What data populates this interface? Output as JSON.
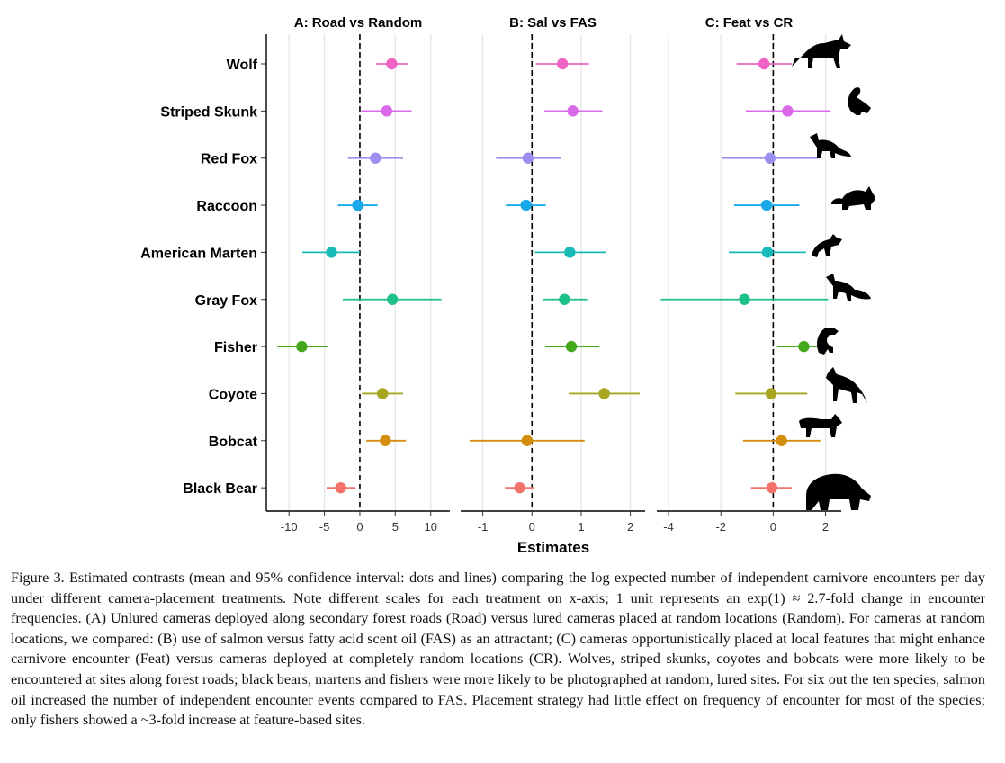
{
  "chart_data": {
    "type": "forest",
    "xlabel": "Estimates",
    "species": [
      "Wolf",
      "Striped Skunk",
      "Red Fox",
      "Raccoon",
      "American Marten",
      "Gray Fox",
      "Fisher",
      "Coyote",
      "Bobcat",
      "Black Bear"
    ],
    "colors": {
      "Wolf": "#EE63C4",
      "Striped Skunk": "#D969E8",
      "Red Fox": "#9B8FEF",
      "Raccoon": "#1AA9E8",
      "American Marten": "#17BAB6",
      "Gray Fox": "#1CC088",
      "Fisher": "#45A81C",
      "Coyote": "#A6A621",
      "Bobcat": "#D38E0E",
      "Black Bear": "#F2736C"
    },
    "icons": [
      "wolf-icon",
      "skunk-icon",
      "red-fox-icon",
      "raccoon-icon",
      "marten-icon",
      "gray-fox-icon",
      "fisher-icon",
      "coyote-icon",
      "bobcat-icon",
      "bear-icon"
    ],
    "panels": [
      {
        "title": "A: Road vs Random",
        "xlim": [
          -13.2,
          12.7
        ],
        "ticks": [
          -10,
          -5,
          0,
          5,
          10
        ],
        "estimates": [
          {
            "species": "Wolf",
            "mean": 4.5,
            "lower": 2.3,
            "upper": 6.7
          },
          {
            "species": "Striped Skunk",
            "mean": 3.8,
            "lower": 0.2,
            "upper": 7.3
          },
          {
            "species": "Red Fox",
            "mean": 2.2,
            "lower": -1.7,
            "upper": 6.1
          },
          {
            "species": "Raccoon",
            "mean": -0.3,
            "lower": -3.1,
            "upper": 2.5
          },
          {
            "species": "American Marten",
            "mean": -4.0,
            "lower": -8.1,
            "upper": 0.0
          },
          {
            "species": "Gray Fox",
            "mean": 4.6,
            "lower": -2.4,
            "upper": 11.5
          },
          {
            "species": "Fisher",
            "mean": -8.2,
            "lower": -11.6,
            "upper": -4.6
          },
          {
            "species": "Coyote",
            "mean": 3.2,
            "lower": 0.3,
            "upper": 6.1
          },
          {
            "species": "Bobcat",
            "mean": 3.6,
            "lower": 0.9,
            "upper": 6.5
          },
          {
            "species": "Black Bear",
            "mean": -2.7,
            "lower": -4.7,
            "upper": -0.6
          }
        ]
      },
      {
        "title": "B: Sal vs FAS",
        "xlim": [
          -1.45,
          2.3
        ],
        "ticks": [
          -1,
          0,
          1,
          2
        ],
        "estimates": [
          {
            "species": "Wolf",
            "mean": 0.62,
            "lower": 0.08,
            "upper": 1.16
          },
          {
            "species": "Striped Skunk",
            "mean": 0.83,
            "lower": 0.25,
            "upper": 1.43
          },
          {
            "species": "Red Fox",
            "mean": -0.08,
            "lower": -0.73,
            "upper": 0.6
          },
          {
            "species": "Raccoon",
            "mean": -0.12,
            "lower": -0.53,
            "upper": 0.28
          },
          {
            "species": "American Marten",
            "mean": 0.77,
            "lower": 0.06,
            "upper": 1.5
          },
          {
            "species": "Gray Fox",
            "mean": 0.66,
            "lower": 0.22,
            "upper": 1.12
          },
          {
            "species": "Fisher",
            "mean": 0.8,
            "lower": 0.27,
            "upper": 1.37
          },
          {
            "species": "Coyote",
            "mean": 1.47,
            "lower": 0.75,
            "upper": 2.19
          },
          {
            "species": "Bobcat",
            "mean": -0.1,
            "lower": -1.27,
            "upper": 1.07
          },
          {
            "species": "Black Bear",
            "mean": -0.25,
            "lower": -0.55,
            "upper": 0.03
          }
        ]
      },
      {
        "title": "C: Feat vs CR",
        "xlim": [
          -4.45,
          2.6
        ],
        "ticks": [
          -4,
          -2,
          0,
          2
        ],
        "estimates": [
          {
            "species": "Wolf",
            "mean": -0.35,
            "lower": -1.4,
            "upper": 0.7
          },
          {
            "species": "Striped Skunk",
            "mean": 0.55,
            "lower": -1.05,
            "upper": 2.2
          },
          {
            "species": "Red Fox",
            "mean": -0.12,
            "lower": -1.95,
            "upper": 1.7
          },
          {
            "species": "Raccoon",
            "mean": -0.25,
            "lower": -1.5,
            "upper": 1.0
          },
          {
            "species": "American Marten",
            "mean": -0.22,
            "lower": -1.7,
            "upper": 1.25
          },
          {
            "species": "Gray Fox",
            "mean": -1.1,
            "lower": -4.3,
            "upper": 2.1
          },
          {
            "species": "Fisher",
            "mean": 1.17,
            "lower": 0.15,
            "upper": 2.15
          },
          {
            "species": "Coyote",
            "mean": -0.08,
            "lower": -1.45,
            "upper": 1.3
          },
          {
            "species": "Bobcat",
            "mean": 0.32,
            "lower": -1.15,
            "upper": 1.8
          },
          {
            "species": "Black Bear",
            "mean": -0.05,
            "lower": -0.85,
            "upper": 0.7
          }
        ]
      }
    ]
  },
  "caption": "Figure 3. Estimated contrasts (mean and 95% confidence interval: dots and lines) comparing the log expected number of independent carnivore encounters per day under different camera-placement treatments. Note different scales for each treatment on x-axis; 1 unit represents an exp(1) ≈ 2.7-fold change in encounter frequencies. (A) Unlured cameras deployed along secondary forest roads (Road) versus lured cameras placed at random locations (Random). For cameras at random locations, we compared: (B) use of salmon versus fatty acid scent oil (FAS) as an attractant; (C) cameras opportunistically placed at local features that might enhance carnivore encounter (Feat) versus cameras deployed at completely random locations (CR). Wolves, striped skunks, coyotes and bobcats were more likely to be encountered at sites along forest roads; black bears, martens and fishers were more likely to be photographed at random, lured sites. For six out the ten species, salmon oil increased the number of independent encounter events compared to FAS. Placement strategy had little effect on frequency of encounter for most of the species; only fishers showed a ~3-fold increase at feature-based sites."
}
